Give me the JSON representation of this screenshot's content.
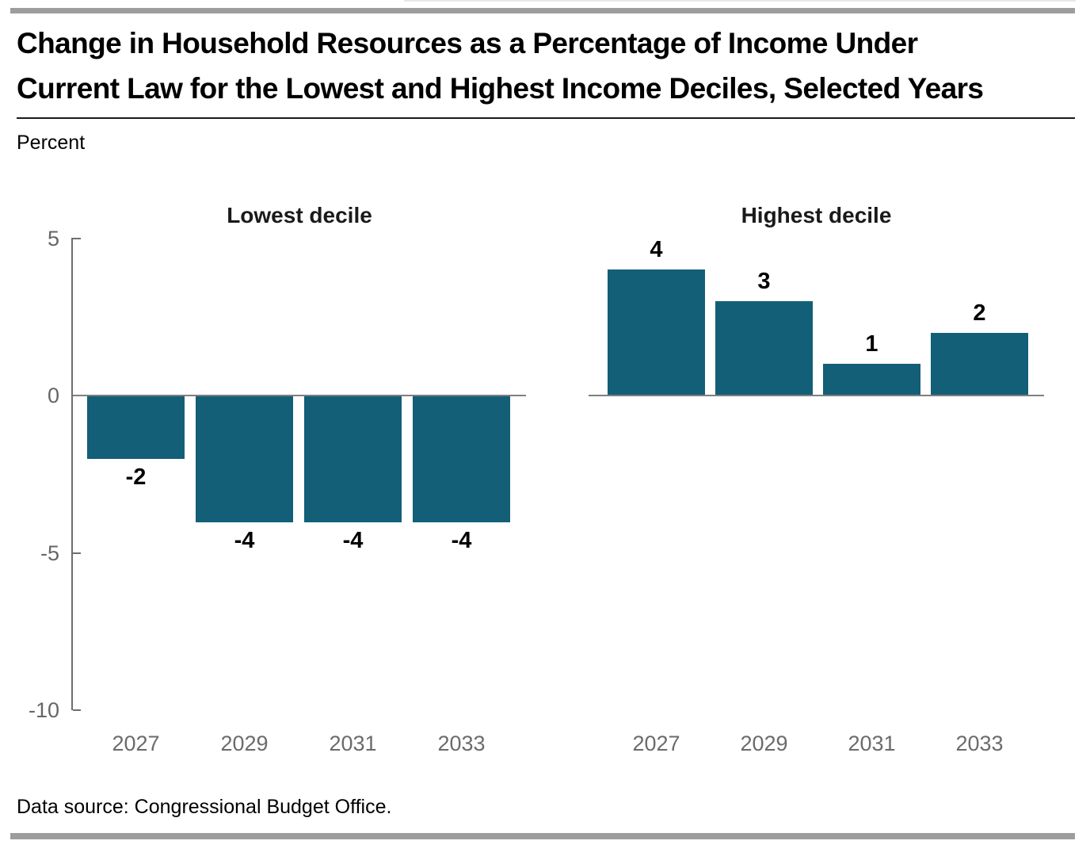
{
  "page": {
    "title_line1": "Change in Household Resources as a Percentage of Income Under",
    "title_line2": "Current Law for the Lowest and Highest Income Deciles, Selected Years",
    "unit_label": "Percent",
    "data_source": "Data source: Congressional Budget Office."
  },
  "colors": {
    "bar": "#125f77",
    "accent_bar": "#9d9d9d",
    "axis": "#6e6e6e",
    "tick_label": "#666666",
    "year_label": "#6b6b6b",
    "zero_line": "#7f7f7f"
  },
  "chart_data": [
    {
      "type": "bar",
      "title": "Lowest decile",
      "categories": [
        "2027",
        "2029",
        "2031",
        "2033"
      ],
      "values": [
        -2,
        -4,
        -4,
        -4
      ],
      "value_labels": [
        "-2",
        "-4",
        "-4",
        "-4"
      ],
      "xlabel": "",
      "ylabel": "Percent",
      "ylim": [
        -10,
        5
      ],
      "yticks": [
        5,
        0,
        -5,
        -10
      ],
      "grid": false,
      "legend": "none"
    },
    {
      "type": "bar",
      "title": "Highest decile",
      "categories": [
        "2027",
        "2029",
        "2031",
        "2033"
      ],
      "values": [
        4,
        3,
        1,
        2
      ],
      "value_labels": [
        "4",
        "3",
        "1",
        "2"
      ],
      "xlabel": "",
      "ylabel": "Percent",
      "ylim": [
        -10,
        5
      ],
      "yticks": [
        5,
        0,
        -5,
        -10
      ],
      "grid": false,
      "legend": "none"
    }
  ]
}
